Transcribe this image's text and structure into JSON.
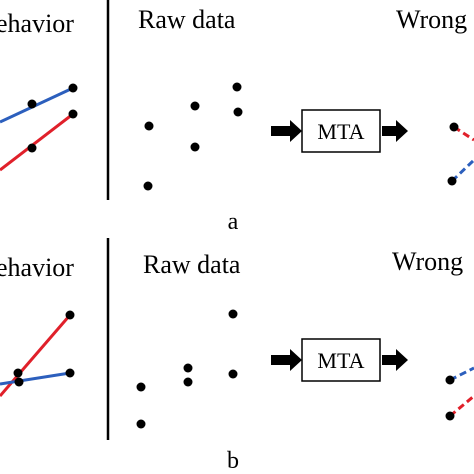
{
  "colors": {
    "ink": "#000000",
    "series_a": "#2c5fbd",
    "series_b": "#e0202a",
    "background": "#ffffff"
  },
  "panels": [
    {
      "id": "a",
      "left_title": "ehavior",
      "middle_title": "Raw data",
      "right_title": "Wrong",
      "process_label": "MTA",
      "caption": "a"
    },
    {
      "id": "b",
      "left_title": "ehavior",
      "middle_title": "Raw data",
      "right_title": "Wrong",
      "process_label": "MTA",
      "caption": "b"
    }
  ]
}
